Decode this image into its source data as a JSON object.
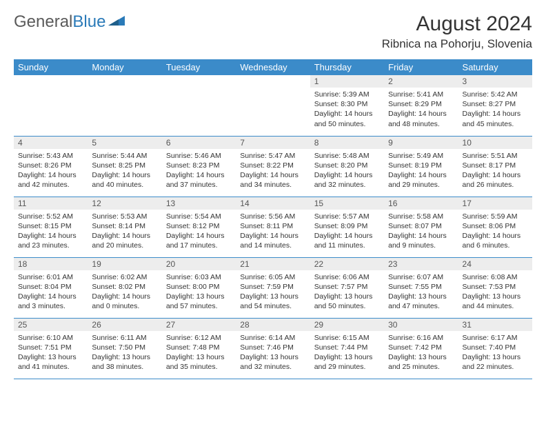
{
  "logo": {
    "text1": "General",
    "text2": "Blue"
  },
  "title": "August 2024",
  "location": "Ribnica na Pohorju, Slovenia",
  "colors": {
    "header_bg": "#3b8bc9",
    "header_text": "#ffffff",
    "row_border": "#3b8bc9",
    "daynum_bg": "#ededed",
    "body_text": "#333333",
    "page_bg": "#ffffff"
  },
  "typography": {
    "title_fontsize": 30,
    "location_fontsize": 17,
    "day_header_fontsize": 13,
    "daynum_fontsize": 12,
    "cell_fontsize": 10.5
  },
  "day_headers": [
    "Sunday",
    "Monday",
    "Tuesday",
    "Wednesday",
    "Thursday",
    "Friday",
    "Saturday"
  ],
  "weeks": [
    [
      null,
      null,
      null,
      null,
      {
        "n": "1",
        "sunrise": "5:39 AM",
        "sunset": "8:30 PM",
        "daylight": "14 hours and 50 minutes."
      },
      {
        "n": "2",
        "sunrise": "5:41 AM",
        "sunset": "8:29 PM",
        "daylight": "14 hours and 48 minutes."
      },
      {
        "n": "3",
        "sunrise": "5:42 AM",
        "sunset": "8:27 PM",
        "daylight": "14 hours and 45 minutes."
      }
    ],
    [
      {
        "n": "4",
        "sunrise": "5:43 AM",
        "sunset": "8:26 PM",
        "daylight": "14 hours and 42 minutes."
      },
      {
        "n": "5",
        "sunrise": "5:44 AM",
        "sunset": "8:25 PM",
        "daylight": "14 hours and 40 minutes."
      },
      {
        "n": "6",
        "sunrise": "5:46 AM",
        "sunset": "8:23 PM",
        "daylight": "14 hours and 37 minutes."
      },
      {
        "n": "7",
        "sunrise": "5:47 AM",
        "sunset": "8:22 PM",
        "daylight": "14 hours and 34 minutes."
      },
      {
        "n": "8",
        "sunrise": "5:48 AM",
        "sunset": "8:20 PM",
        "daylight": "14 hours and 32 minutes."
      },
      {
        "n": "9",
        "sunrise": "5:49 AM",
        "sunset": "8:19 PM",
        "daylight": "14 hours and 29 minutes."
      },
      {
        "n": "10",
        "sunrise": "5:51 AM",
        "sunset": "8:17 PM",
        "daylight": "14 hours and 26 minutes."
      }
    ],
    [
      {
        "n": "11",
        "sunrise": "5:52 AM",
        "sunset": "8:15 PM",
        "daylight": "14 hours and 23 minutes."
      },
      {
        "n": "12",
        "sunrise": "5:53 AM",
        "sunset": "8:14 PM",
        "daylight": "14 hours and 20 minutes."
      },
      {
        "n": "13",
        "sunrise": "5:54 AM",
        "sunset": "8:12 PM",
        "daylight": "14 hours and 17 minutes."
      },
      {
        "n": "14",
        "sunrise": "5:56 AM",
        "sunset": "8:11 PM",
        "daylight": "14 hours and 14 minutes."
      },
      {
        "n": "15",
        "sunrise": "5:57 AM",
        "sunset": "8:09 PM",
        "daylight": "14 hours and 11 minutes."
      },
      {
        "n": "16",
        "sunrise": "5:58 AM",
        "sunset": "8:07 PM",
        "daylight": "14 hours and 9 minutes."
      },
      {
        "n": "17",
        "sunrise": "5:59 AM",
        "sunset": "8:06 PM",
        "daylight": "14 hours and 6 minutes."
      }
    ],
    [
      {
        "n": "18",
        "sunrise": "6:01 AM",
        "sunset": "8:04 PM",
        "daylight": "14 hours and 3 minutes."
      },
      {
        "n": "19",
        "sunrise": "6:02 AM",
        "sunset": "8:02 PM",
        "daylight": "14 hours and 0 minutes."
      },
      {
        "n": "20",
        "sunrise": "6:03 AM",
        "sunset": "8:00 PM",
        "daylight": "13 hours and 57 minutes."
      },
      {
        "n": "21",
        "sunrise": "6:05 AM",
        "sunset": "7:59 PM",
        "daylight": "13 hours and 54 minutes."
      },
      {
        "n": "22",
        "sunrise": "6:06 AM",
        "sunset": "7:57 PM",
        "daylight": "13 hours and 50 minutes."
      },
      {
        "n": "23",
        "sunrise": "6:07 AM",
        "sunset": "7:55 PM",
        "daylight": "13 hours and 47 minutes."
      },
      {
        "n": "24",
        "sunrise": "6:08 AM",
        "sunset": "7:53 PM",
        "daylight": "13 hours and 44 minutes."
      }
    ],
    [
      {
        "n": "25",
        "sunrise": "6:10 AM",
        "sunset": "7:51 PM",
        "daylight": "13 hours and 41 minutes."
      },
      {
        "n": "26",
        "sunrise": "6:11 AM",
        "sunset": "7:50 PM",
        "daylight": "13 hours and 38 minutes."
      },
      {
        "n": "27",
        "sunrise": "6:12 AM",
        "sunset": "7:48 PM",
        "daylight": "13 hours and 35 minutes."
      },
      {
        "n": "28",
        "sunrise": "6:14 AM",
        "sunset": "7:46 PM",
        "daylight": "13 hours and 32 minutes."
      },
      {
        "n": "29",
        "sunrise": "6:15 AM",
        "sunset": "7:44 PM",
        "daylight": "13 hours and 29 minutes."
      },
      {
        "n": "30",
        "sunrise": "6:16 AM",
        "sunset": "7:42 PM",
        "daylight": "13 hours and 25 minutes."
      },
      {
        "n": "31",
        "sunrise": "6:17 AM",
        "sunset": "7:40 PM",
        "daylight": "13 hours and 22 minutes."
      }
    ]
  ],
  "labels": {
    "sunrise": "Sunrise:",
    "sunset": "Sunset:",
    "daylight": "Daylight:"
  }
}
